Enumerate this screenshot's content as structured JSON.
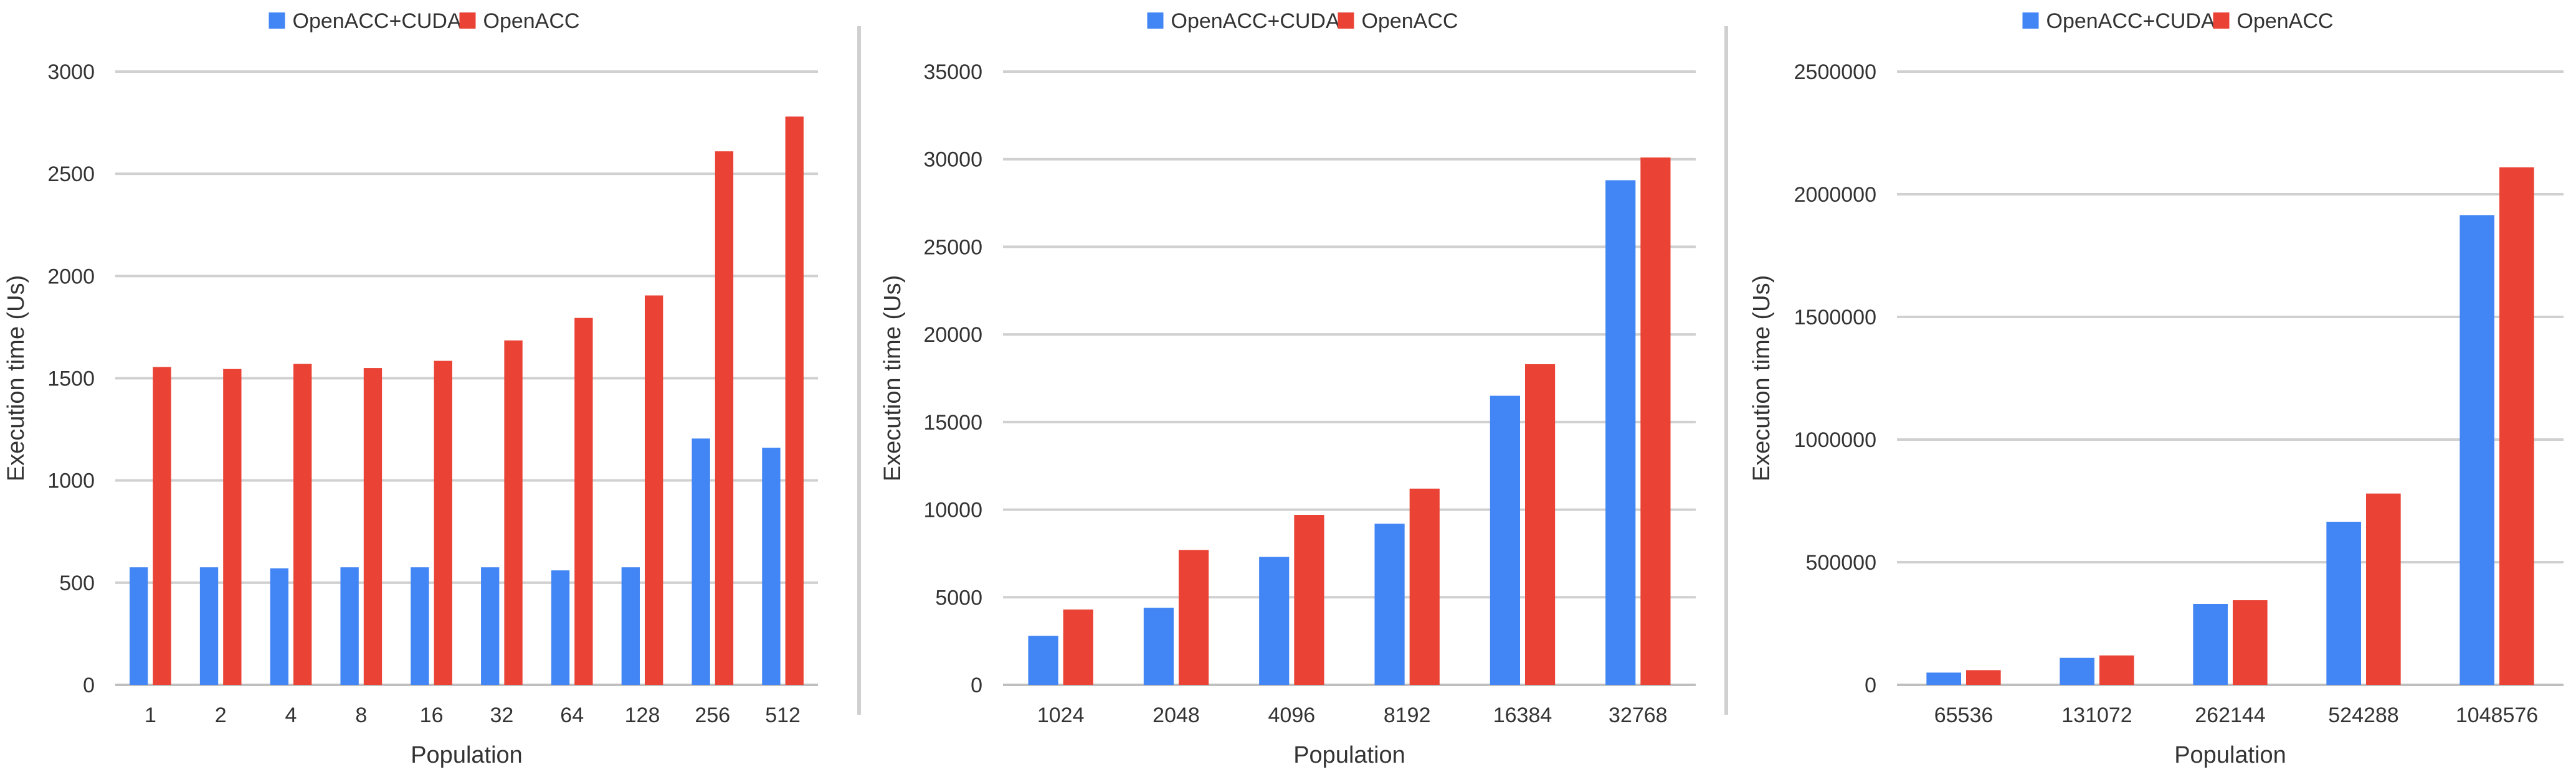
{
  "colors": {
    "OpenACC+CUDA": "#4285f4",
    "OpenACC": "#ea4335",
    "grid": "#d0d0d0",
    "axis": "#bfbfbf",
    "separator": "#d0d0d0"
  },
  "chart_data": [
    {
      "type": "bar",
      "title": "",
      "xlabel": "Population",
      "ylabel": "Execution time (Us)",
      "legend": [
        "OpenACC+CUDA",
        "OpenACC"
      ],
      "legend_position": "top-center",
      "grid": true,
      "ylim": [
        0,
        3000
      ],
      "yticks": [
        "0",
        "500",
        "1000",
        "1500",
        "2000",
        "2500",
        "3000"
      ],
      "categories": [
        "1",
        "2",
        "4",
        "8",
        "16",
        "32",
        "64",
        "128",
        "256",
        "512"
      ],
      "series": [
        {
          "name": "OpenACC+CUDA",
          "values": [
            575,
            575,
            570,
            575,
            575,
            575,
            560,
            575,
            1205,
            1160
          ]
        },
        {
          "name": "OpenACC",
          "values": [
            1555,
            1545,
            1570,
            1550,
            1585,
            1685,
            1795,
            1905,
            2610,
            2780
          ]
        }
      ]
    },
    {
      "type": "bar",
      "title": "",
      "xlabel": "Population",
      "ylabel": "Execution time (Us)",
      "legend": [
        "OpenACC+CUDA",
        "OpenACC"
      ],
      "legend_position": "top-center",
      "grid": true,
      "ylim": [
        0,
        35000
      ],
      "yticks": [
        "0",
        "5000",
        "10000",
        "15000",
        "20000",
        "25000",
        "30000",
        "35000"
      ],
      "categories": [
        "1024",
        "2048",
        "4096",
        "8192",
        "16384",
        "32768"
      ],
      "series": [
        {
          "name": "OpenACC+CUDA",
          "values": [
            2800,
            4400,
            7300,
            9200,
            16500,
            28800
          ]
        },
        {
          "name": "OpenACC",
          "values": [
            4300,
            7700,
            9700,
            11200,
            18300,
            30100
          ]
        }
      ]
    },
    {
      "type": "bar",
      "title": "",
      "xlabel": "Population",
      "ylabel": "Execution time (Us)",
      "legend": [
        "OpenACC+CUDA",
        "OpenACC"
      ],
      "legend_position": "top-center",
      "grid": true,
      "ylim": [
        0,
        2500000
      ],
      "yticks": [
        "0",
        "500000",
        "1000000",
        "1500000",
        "2000000",
        "2500000"
      ],
      "categories": [
        "65536",
        "131072",
        "262144",
        "524288",
        "1048576"
      ],
      "series": [
        {
          "name": "OpenACC+CUDA",
          "values": [
            50000,
            110000,
            330000,
            665000,
            1915000
          ]
        },
        {
          "name": "OpenACC",
          "values": [
            60000,
            120000,
            345000,
            780000,
            2110000
          ]
        }
      ]
    }
  ]
}
